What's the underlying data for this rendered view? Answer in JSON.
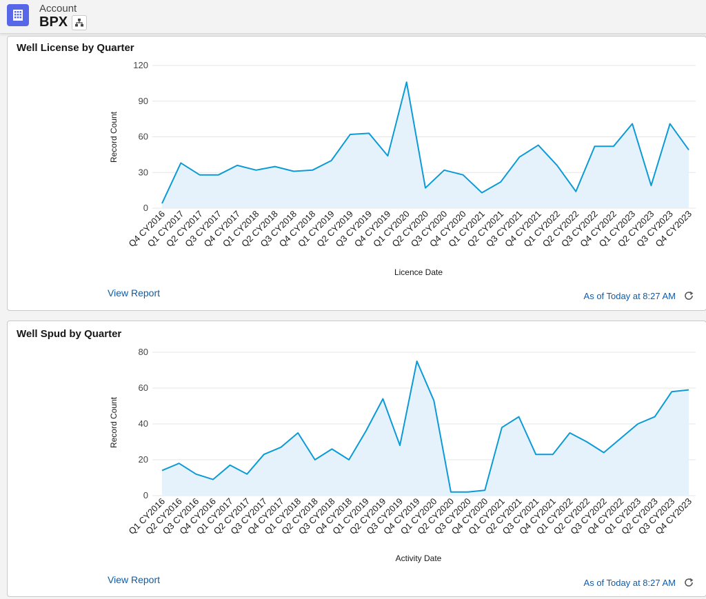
{
  "header": {
    "object_label": "Account",
    "record_name": "BPX",
    "icon": "account-icon",
    "hierarchy_icon": "hierarchy-icon"
  },
  "cards": [
    {
      "title": "Well License by Quarter",
      "view_report_label": "View Report",
      "as_of_label": "As of Today at 8:27 AM",
      "refresh_icon": "refresh-icon",
      "chart_data": {
        "type": "area",
        "xlabel": "Licence Date",
        "ylabel": "Record Count",
        "ylim": [
          0,
          120
        ],
        "yticks": [
          0,
          30,
          60,
          90,
          120
        ],
        "grid": true,
        "color": "#0b9ad7",
        "fill": "#e5f2fb",
        "categories": [
          "Q4 CY2016",
          "Q1 CY2017",
          "Q2 CY2017",
          "Q3 CY2017",
          "Q4 CY2017",
          "Q1 CY2018",
          "Q2 CY2018",
          "Q3 CY2018",
          "Q4 CY2018",
          "Q1 CY2019",
          "Q2 CY2019",
          "Q3 CY2019",
          "Q4 CY2019",
          "Q1 CY2020",
          "Q2 CY2020",
          "Q3 CY2020",
          "Q4 CY2020",
          "Q1 CY2021",
          "Q2 CY2021",
          "Q3 CY2021",
          "Q4 CY2021",
          "Q1 CY2022",
          "Q2 CY2022",
          "Q3 CY2022",
          "Q4 CY2022",
          "Q1 CY2023",
          "Q2 CY2023",
          "Q3 CY2023",
          "Q4 CY2023"
        ],
        "values": [
          4,
          38,
          28,
          28,
          36,
          32,
          35,
          31,
          32,
          40,
          62,
          63,
          44,
          106,
          17,
          32,
          28,
          13,
          22,
          43,
          53,
          36,
          14,
          52,
          52,
          71,
          19,
          71,
          49
        ]
      }
    },
    {
      "title": "Well Spud by Quarter",
      "view_report_label": "View Report",
      "as_of_label": "As of Today at 8:27 AM",
      "refresh_icon": "refresh-icon",
      "chart_data": {
        "type": "area",
        "xlabel": "Activity Date",
        "ylabel": "Record Count",
        "ylim": [
          0,
          80
        ],
        "yticks": [
          0,
          20,
          40,
          60,
          80
        ],
        "grid": true,
        "color": "#0b9ad7",
        "fill": "#e5f2fb",
        "categories": [
          "Q1 CY2016",
          "Q2 CY2016",
          "Q3 CY2016",
          "Q4 CY2016",
          "Q1 CY2017",
          "Q2 CY2017",
          "Q3 CY2017",
          "Q4 CY2017",
          "Q1 CY2018",
          "Q2 CY2018",
          "Q3 CY2018",
          "Q4 CY2018",
          "Q1 CY2019",
          "Q2 CY2019",
          "Q3 CY2019",
          "Q4 CY2019",
          "Q1 CY2020",
          "Q2 CY2020",
          "Q3 CY2020",
          "Q4 CY2020",
          "Q1 CY2021",
          "Q2 CY2021",
          "Q3 CY2021",
          "Q4 CY2021",
          "Q1 CY2022",
          "Q2 CY2022",
          "Q3 CY2022",
          "Q4 CY2022",
          "Q1 CY2023",
          "Q2 CY2023",
          "Q3 CY2023",
          "Q4 CY2023"
        ],
        "values": [
          14,
          18,
          12,
          9,
          17,
          12,
          23,
          27,
          35,
          20,
          26,
          20,
          36,
          54,
          28,
          75,
          53,
          2,
          2,
          3,
          38,
          44,
          23,
          23,
          35,
          30,
          24,
          32,
          40,
          44,
          58,
          59
        ]
      }
    }
  ]
}
